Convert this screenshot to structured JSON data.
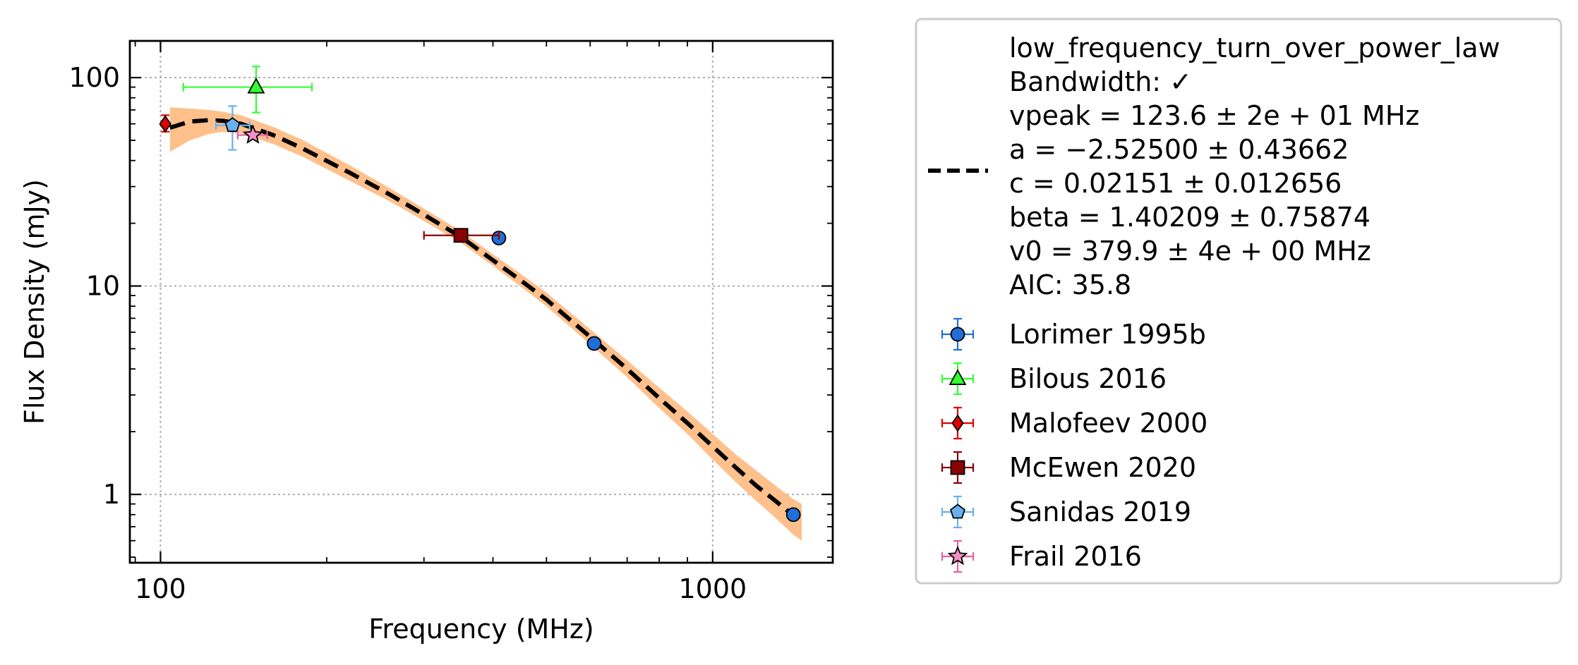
{
  "chart_data": {
    "type": "scatter",
    "title": "",
    "xlabel": "Frequency (MHz)",
    "ylabel": "Flux Density (mJy)",
    "xscale": "log",
    "yscale": "log",
    "xlim": [
      88,
      1650
    ],
    "ylim": [
      0.47,
      150
    ],
    "xticks": [
      {
        "value": 100,
        "label": "100"
      },
      {
        "value": 1000,
        "label": "1000"
      }
    ],
    "yticks": [
      {
        "value": 1,
        "label": "1"
      },
      {
        "value": 10,
        "label": "10"
      },
      {
        "value": 100,
        "label": "100"
      }
    ],
    "grid": true,
    "legend_position": "outside-right",
    "fit": {
      "name": "low_frequency_turn_over_power_law",
      "label_lines": [
        "low_frequency_turn_over_power_law",
        "Bandwidth: ✓",
        "vpeak = 123.6 ± 2e + 01 MHz",
        "a = −2.52500 ± 0.43662",
        "c = 0.02151 ± 0.012656",
        "beta = 1.40209 ± 0.75874",
        "v0 = 379.9 ± 4e + 00 MHz",
        "AIC: 35.8"
      ],
      "params": {
        "vpeak": 123.6,
        "a": -2.525,
        "c": 0.02151,
        "beta": 1.40209,
        "v0": 379.9
      },
      "color": "#000000",
      "band_color": "#ffc08c",
      "curve": [
        [
          104,
          57.5
        ],
        [
          113,
          61.5
        ],
        [
          122,
          62.5
        ],
        [
          130,
          62
        ],
        [
          140,
          60
        ],
        [
          160,
          53
        ],
        [
          180,
          46
        ],
        [
          220,
          35
        ],
        [
          260,
          27.5
        ],
        [
          300,
          22
        ],
        [
          350,
          17.2
        ],
        [
          400,
          13.3
        ],
        [
          450,
          10.6
        ],
        [
          500,
          8.6
        ],
        [
          600,
          5.7
        ],
        [
          700,
          4.0
        ],
        [
          800,
          2.9
        ],
        [
          900,
          2.2
        ],
        [
          1000,
          1.7
        ],
        [
          1100,
          1.35
        ],
        [
          1200,
          1.1
        ],
        [
          1300,
          0.93
        ],
        [
          1400,
          0.79
        ],
        [
          1450,
          0.74
        ]
      ],
      "band_upper": [
        [
          104,
          72
        ],
        [
          113,
          71
        ],
        [
          122,
          70
        ],
        [
          130,
          68.5
        ],
        [
          140,
          66
        ],
        [
          160,
          58
        ],
        [
          180,
          50.5
        ],
        [
          220,
          38
        ],
        [
          260,
          29.5
        ],
        [
          300,
          23.5
        ],
        [
          350,
          18.3
        ],
        [
          400,
          14.2
        ],
        [
          450,
          11.4
        ],
        [
          500,
          9.3
        ],
        [
          600,
          6.2
        ],
        [
          700,
          4.4
        ],
        [
          800,
          3.25
        ],
        [
          900,
          2.5
        ],
        [
          1000,
          1.95
        ],
        [
          1100,
          1.56
        ],
        [
          1200,
          1.3
        ],
        [
          1300,
          1.1
        ],
        [
          1400,
          0.95
        ],
        [
          1450,
          0.9
        ]
      ],
      "band_lower": [
        [
          104,
          44
        ],
        [
          113,
          50
        ],
        [
          122,
          53.5
        ],
        [
          130,
          55
        ],
        [
          140,
          54
        ],
        [
          160,
          48
        ],
        [
          180,
          42
        ],
        [
          220,
          32
        ],
        [
          260,
          25.5
        ],
        [
          300,
          20.5
        ],
        [
          350,
          16.1
        ],
        [
          400,
          12.5
        ],
        [
          450,
          9.9
        ],
        [
          500,
          8.0
        ],
        [
          600,
          5.25
        ],
        [
          700,
          3.65
        ],
        [
          800,
          2.6
        ],
        [
          900,
          1.95
        ],
        [
          1000,
          1.47
        ],
        [
          1100,
          1.15
        ],
        [
          1200,
          0.93
        ],
        [
          1300,
          0.77
        ],
        [
          1400,
          0.64
        ],
        [
          1450,
          0.6
        ]
      ]
    },
    "series": [
      {
        "name": "Lorimer 1995b",
        "marker": "circle",
        "color": "#1f6fd6",
        "errcolor": "#1f6fd6",
        "points": [
          {
            "x": 410,
            "y": 17
          },
          {
            "x": 610,
            "y": 5.3
          },
          {
            "x": 1400,
            "y": 0.8
          }
        ]
      },
      {
        "name": "Bilous 2016",
        "marker": "triangle",
        "color": "#33ff33",
        "errcolor": "#33ff33",
        "points": [
          {
            "x": 149,
            "y": 90,
            "xerr": [
              110,
              188
            ],
            "yerr": [
              68,
              113
            ]
          }
        ]
      },
      {
        "name": "Malofeev 2000",
        "marker": "diamond",
        "color": "#e00000",
        "errcolor": "#e00000",
        "points": [
          {
            "x": 102,
            "y": 60,
            "yerr": [
              55,
              66
            ]
          }
        ]
      },
      {
        "name": "McEwen 2020",
        "marker": "square",
        "color": "#8b0000",
        "errcolor": "#8b0000",
        "points": [
          {
            "x": 350,
            "y": 17.5,
            "xerr": [
              300,
              410
            ]
          }
        ]
      },
      {
        "name": "Sanidas 2019",
        "marker": "pentagon",
        "color": "#6ab0ee",
        "errcolor": "#6ab0ee",
        "points": [
          {
            "x": 135,
            "y": 59,
            "xerr": [
              126,
              145
            ],
            "yerr": [
              45,
              73
            ]
          }
        ]
      },
      {
        "name": "Frail 2016",
        "marker": "star",
        "color": "#f58fc8",
        "errcolor": "#e8609f",
        "points": [
          {
            "x": 147,
            "y": 53,
            "xerr": [
              138,
              156
            ]
          }
        ]
      }
    ]
  }
}
